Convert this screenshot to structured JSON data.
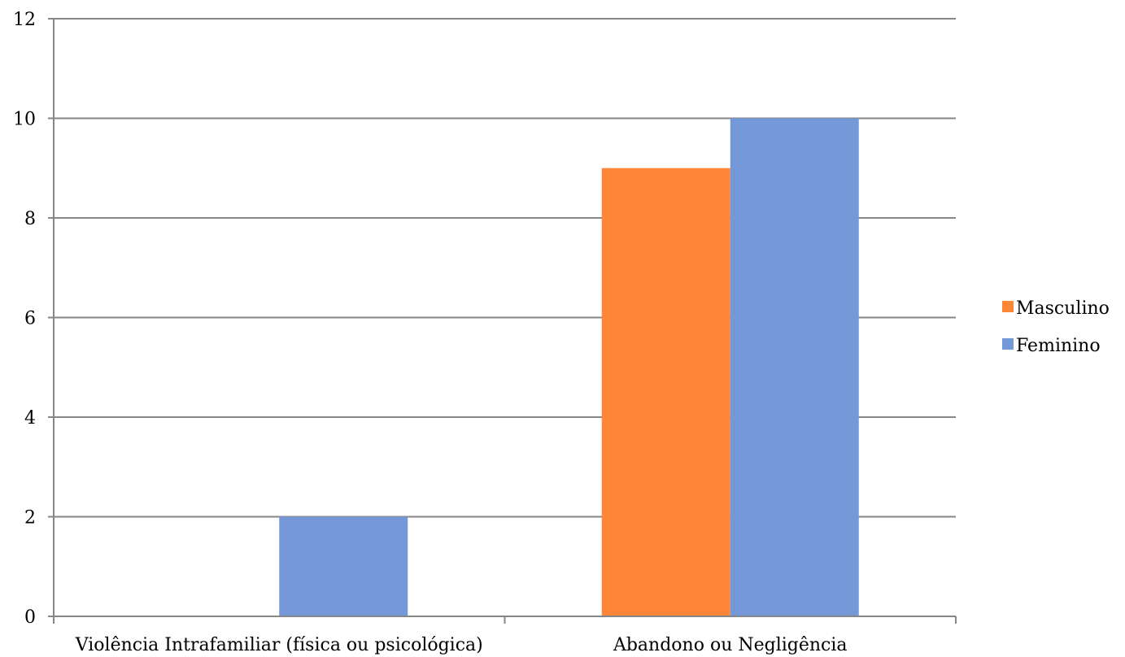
{
  "chart_data": {
    "type": "bar",
    "categories": [
      "Violência Intrafamiliar (física ou psicológica)",
      "Abandono ou Negligência"
    ],
    "series": [
      {
        "name": "Masculino",
        "values": [
          0,
          9
        ],
        "color": "#fd8637"
      },
      {
        "name": "Feminino",
        "values": [
          2,
          10
        ],
        "color": "#7599d8"
      }
    ],
    "title": "",
    "xlabel": "",
    "ylabel": "",
    "ylim": [
      0,
      12
    ],
    "yticks": [
      "0",
      "2",
      "4",
      "6",
      "8",
      "10",
      "12"
    ],
    "grid": true,
    "legend_position": "right"
  }
}
